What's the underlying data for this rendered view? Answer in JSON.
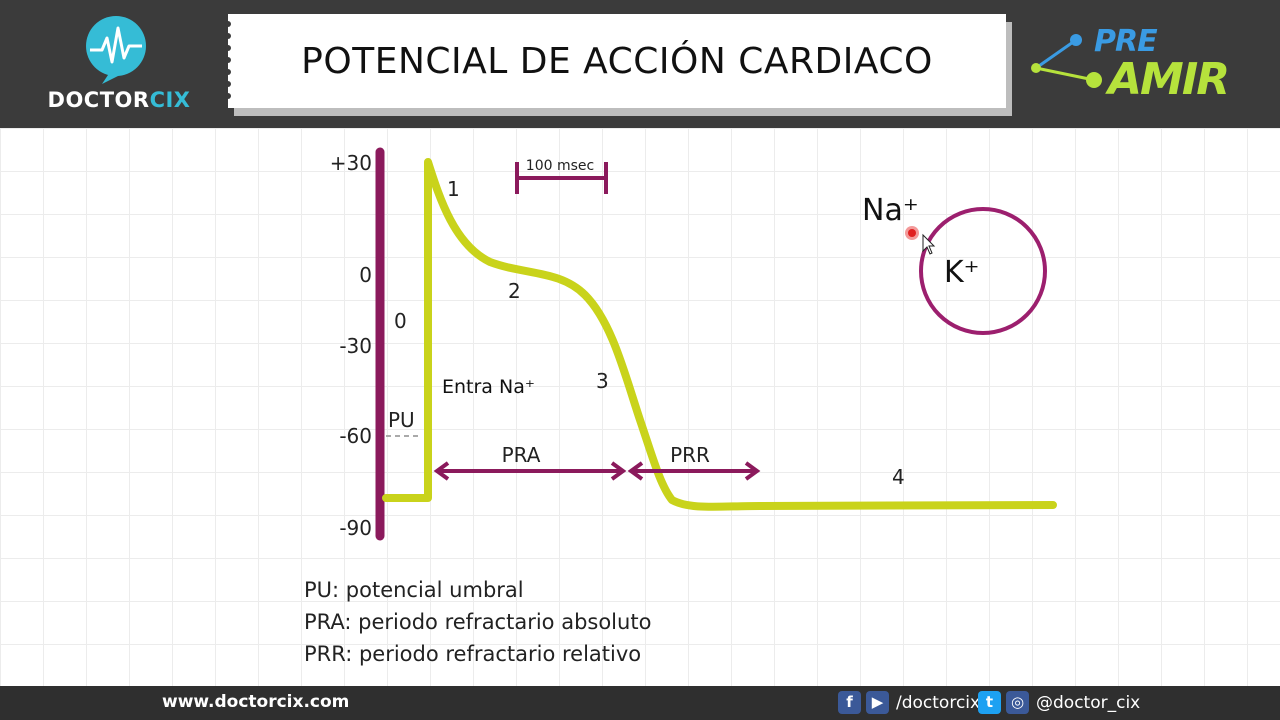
{
  "header": {
    "title": "POTENCIAL DE ACCIÓN CARDIACO",
    "logo_left_part1": "DOCTOR",
    "logo_left_part2": "CIX",
    "logo_right_top": "PRE",
    "logo_right_bottom": "AMIR"
  },
  "axis": {
    "y_ticks": [
      "+30",
      "0",
      "-30",
      "-60",
      "-90"
    ]
  },
  "diagram": {
    "scale_label": "100 msec",
    "phases": [
      "0",
      "1",
      "2",
      "3",
      "4"
    ],
    "pu_label": "PU",
    "entra_na": "Entra Na⁺",
    "pra_label": "PRA",
    "prr_label": "PRR",
    "ion_na": "Na⁺",
    "ion_k": "K⁺"
  },
  "colors": {
    "curve": "#c9d31b",
    "axis_bar": "#8b1a5c",
    "arrow": "#8b1a5c",
    "cell": "#9c1f6e"
  },
  "legend": [
    "PU: potencial umbral",
    "PRA: periodo refractario absoluto",
    "PRR: periodo refractario relativo"
  ],
  "footer": {
    "website": "www.doctorcix.com",
    "facebook_icon": "f",
    "youtube_icon": "▶",
    "handle1": "/doctorcix",
    "twitter_icon": "t",
    "instagram_icon": "◎",
    "handle2": "@doctor_cix"
  }
}
